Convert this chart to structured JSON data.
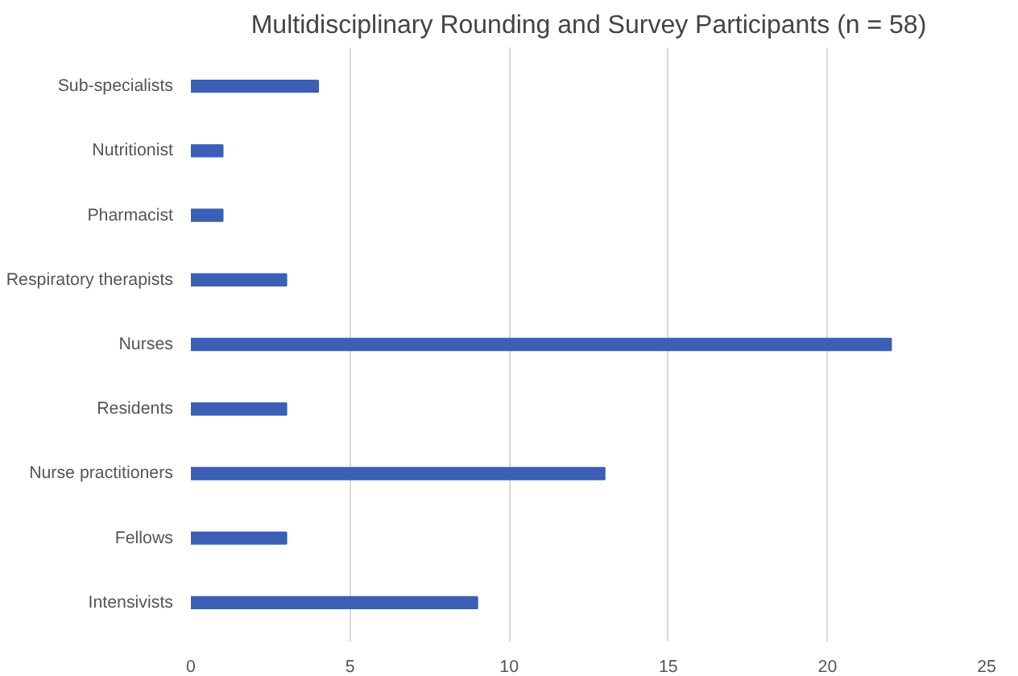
{
  "chart_data": {
    "type": "bar",
    "orientation": "horizontal",
    "title": "Multidisciplinary Rounding and Survey Participants (n = 58)",
    "categories": [
      "Sub-specialists",
      "Nutritionist",
      "Pharmacist",
      "Respiratory therapists",
      "Nurses",
      "Residents",
      "Nurse practitioners",
      "Fellows",
      "Intensivists"
    ],
    "values": [
      4,
      1,
      1,
      3,
      22,
      3,
      13,
      3,
      9
    ],
    "color": "#3a5fb5",
    "xlim": [
      0,
      25
    ],
    "xticks": [
      0,
      5,
      10,
      15,
      20,
      25
    ],
    "grid": "x"
  }
}
